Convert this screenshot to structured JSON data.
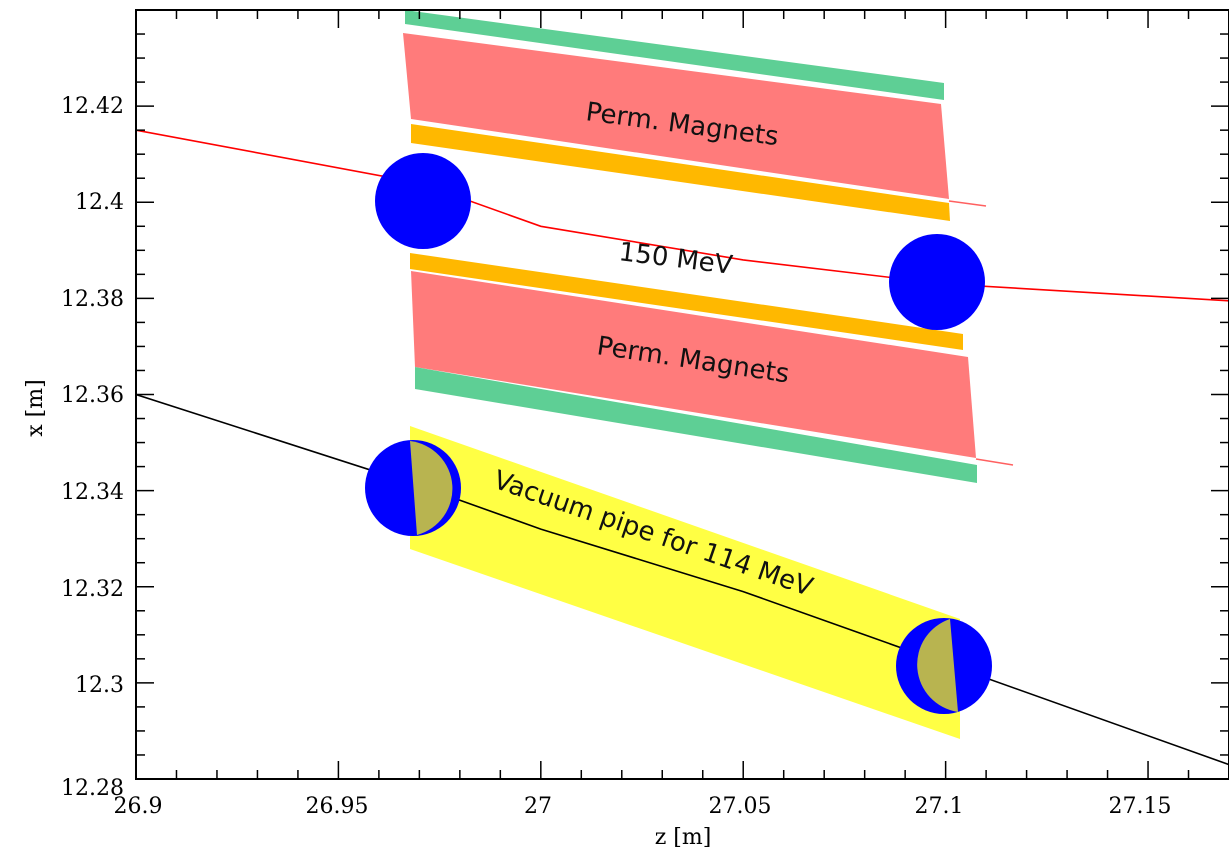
{
  "chart_data": {
    "type": "diagram",
    "xlabel": "z [m]",
    "ylabel": "x [m]",
    "xlim": [
      26.9,
      27.17
    ],
    "ylim": [
      12.28,
      12.44
    ],
    "x_ticks": [
      "26.9",
      "26.95",
      "27",
      "27.05",
      "27.1",
      "27.15"
    ],
    "y_ticks": [
      "12.28",
      "12.3",
      "12.32",
      "12.34",
      "12.36",
      "12.38",
      "12.4",
      "12.42"
    ],
    "annotations": [
      {
        "text": "Perm. Magnets",
        "role": "upper magnet label"
      },
      {
        "text": "150 MeV",
        "role": "beam energy label"
      },
      {
        "text": "Perm. Magnets",
        "role": "lower magnet label"
      },
      {
        "text": "Vacuum pipe for 114 MeV",
        "role": "vacuum pipe label"
      }
    ],
    "beam_150": {
      "color": "#ff0000",
      "points": [
        [
          26.9,
          12.415
        ],
        [
          26.97,
          12.404
        ],
        [
          27.0,
          12.395
        ],
        [
          27.05,
          12.388
        ],
        [
          27.1,
          12.383
        ],
        [
          27.17,
          12.3795
        ]
      ]
    },
    "beam_114": {
      "color": "#000000",
      "points": [
        [
          26.9,
          12.36
        ],
        [
          26.97,
          12.341
        ],
        [
          27.0,
          12.332
        ],
        [
          27.05,
          12.319
        ],
        [
          27.1,
          12.304
        ],
        [
          27.17,
          12.283
        ]
      ]
    },
    "colors": {
      "magnet": "#ff7b7b",
      "green_strip": "#5ecf95",
      "orange_strip": "#ffb800",
      "vacuum_pipe": "#ffff44",
      "beam_spot": "#0000ff",
      "overlap": "#b8b450"
    }
  }
}
